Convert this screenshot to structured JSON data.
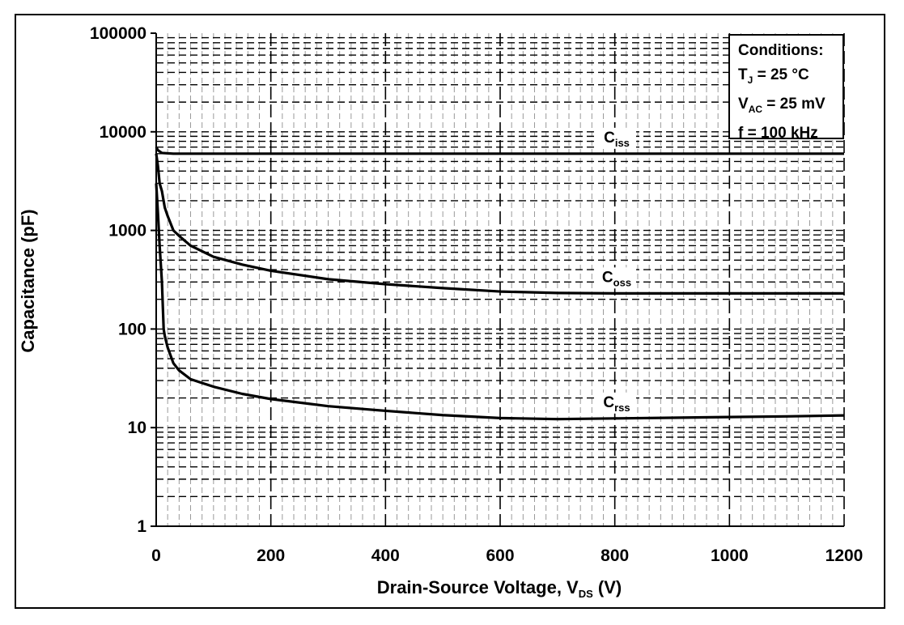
{
  "chart_data": {
    "type": "line",
    "xlabel": "Drain-Source Voltage, V",
    "xlabel_sub": "DS",
    "xlabel_unit": " (V)",
    "ylabel": "Capacitance (pF)",
    "x_scale": "linear",
    "y_scale": "log",
    "xlim": [
      0,
      1200
    ],
    "ylim": [
      1,
      100000
    ],
    "x_ticks": [
      "0",
      "200",
      "400",
      "600",
      "800",
      "1000",
      "1200"
    ],
    "y_ticks": [
      "1",
      "10",
      "100",
      "1000",
      "10000",
      "100000"
    ],
    "grid": true,
    "series": [
      {
        "name": "C",
        "name_sub": "iss",
        "x": [
          0,
          3,
          10,
          30,
          100,
          200,
          400,
          600,
          800,
          1000,
          1200
        ],
        "y": [
          7000,
          6500,
          6100,
          6000,
          6000,
          6000,
          6000,
          6000,
          6000,
          6000,
          6000
        ]
      },
      {
        "name": "C",
        "name_sub": "oss",
        "x": [
          0,
          3,
          6,
          10,
          15,
          20,
          30,
          40,
          60,
          100,
          150,
          200,
          300,
          400,
          500,
          600,
          700,
          800,
          900,
          1000,
          1100,
          1200
        ],
        "y": [
          6000,
          4500,
          3000,
          2500,
          1700,
          1400,
          1000,
          880,
          700,
          540,
          450,
          390,
          320,
          285,
          260,
          240,
          232,
          230,
          230,
          230,
          230,
          230
        ]
      },
      {
        "name": "C",
        "name_sub": "rss",
        "x": [
          0,
          3,
          6,
          10,
          13,
          15,
          20,
          30,
          40,
          60,
          100,
          150,
          200,
          300,
          400,
          500,
          600,
          700,
          800,
          900,
          1000,
          1100,
          1200
        ],
        "y": [
          3000,
          1500,
          700,
          300,
          100,
          85,
          65,
          45,
          38,
          31,
          26,
          22,
          19.5,
          16.5,
          14.8,
          13.4,
          12.5,
          12.2,
          12.4,
          12.6,
          12.8,
          13.0,
          13.3
        ]
      }
    ],
    "conditions": {
      "title": "Conditions:",
      "line1_main": "T",
      "line1_sub": "J",
      "line1_rest": " = 25 °C",
      "line2_main": "V",
      "line2_sub": "AC",
      "line2_rest": " = 25 mV",
      "line3": "f = 100 kHz"
    }
  }
}
